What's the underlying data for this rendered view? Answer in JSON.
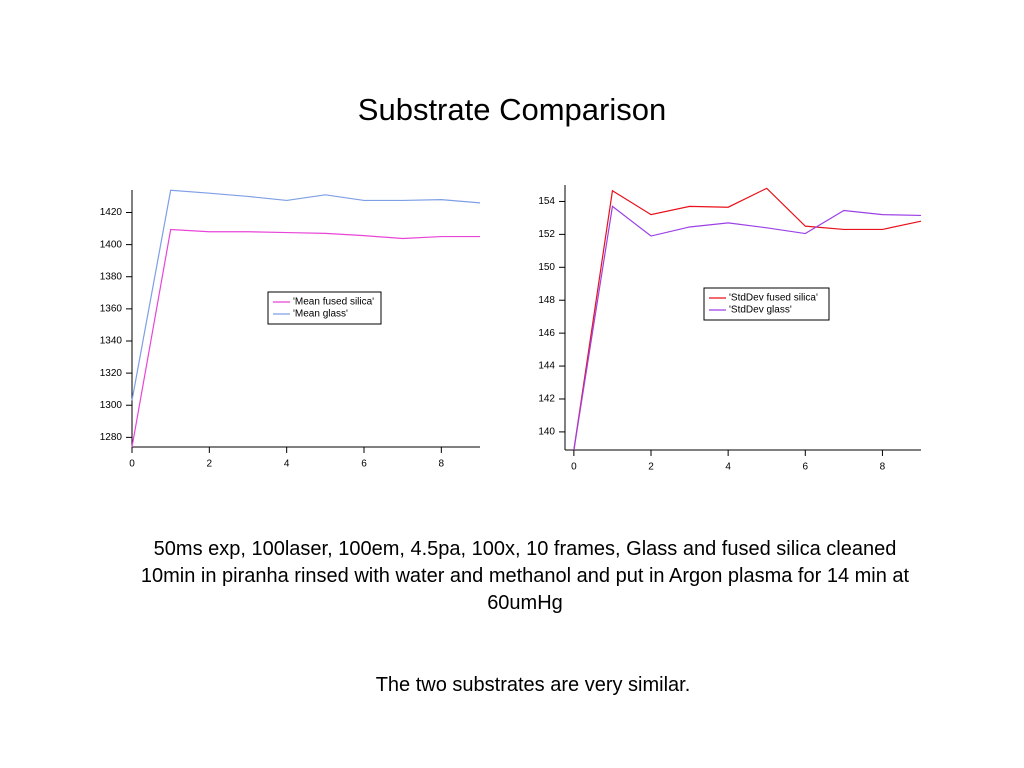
{
  "title": "Substrate Comparison",
  "caption": "50ms exp, 100laser, 100em, 4.5pa, 100x, 10 frames, Glass and fused silica cleaned 10min in piranha rinsed with water and methanol and put in Argon plasma for 14 min at 60umHg",
  "note": "The two substrates are very similar.",
  "chart_data": [
    {
      "type": "line",
      "x": [
        0,
        1,
        2,
        3,
        4,
        5,
        6,
        7,
        8,
        9
      ],
      "series": [
        {
          "name": "'Mean fused silica'",
          "color": "#e845d8",
          "values": [
            1274,
            1409.4,
            1408,
            1408,
            1407.5,
            1407,
            1405.6,
            1403.8,
            1405,
            1405
          ]
        },
        {
          "name": "'Mean glass'",
          "color": "#7e9fe6",
          "values": [
            1303,
            1433.8,
            1432,
            1430,
            1427.5,
            1431,
            1427.5,
            1427.5,
            1428,
            1426
          ]
        }
      ],
      "xlim": [
        0,
        9
      ],
      "xticks": [
        0,
        2,
        4,
        6,
        8
      ],
      "ylim": [
        1274,
        1434
      ],
      "yticks": [
        1280,
        1300,
        1320,
        1340,
        1360,
        1380,
        1400,
        1420
      ],
      "legend": "center"
    },
    {
      "type": "line",
      "x": [
        0,
        1,
        2,
        3,
        4,
        5,
        6,
        7,
        8,
        9
      ],
      "series": [
        {
          "name": "'StdDev fused silica'",
          "color": "#e8101a",
          "values": [
            138.9,
            154.65,
            153.2,
            153.7,
            153.65,
            154.8,
            152.5,
            152.3,
            152.3,
            152.8
          ]
        },
        {
          "name": "'StdDev glass'",
          "color": "#9b40e6",
          "values": [
            138.9,
            153.7,
            151.9,
            152.45,
            152.7,
            152.4,
            152.05,
            153.45,
            153.2,
            153.15
          ]
        }
      ],
      "xlim": [
        -0.23,
        9
      ],
      "xticks": [
        0,
        2,
        4,
        6,
        8
      ],
      "ylim": [
        138.9,
        155
      ],
      "yticks": [
        140,
        142,
        144,
        146,
        148,
        150,
        152,
        154
      ],
      "legend": "center"
    }
  ]
}
